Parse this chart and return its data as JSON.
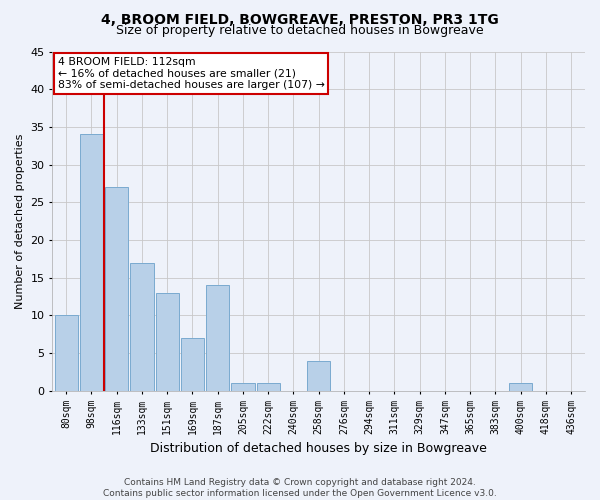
{
  "title": "4, BROOM FIELD, BOWGREAVE, PRESTON, PR3 1TG",
  "subtitle": "Size of property relative to detached houses in Bowgreave",
  "xlabel": "Distribution of detached houses by size in Bowgreave",
  "ylabel": "Number of detached properties",
  "bin_labels": [
    "80sqm",
    "98sqm",
    "116sqm",
    "133sqm",
    "151sqm",
    "169sqm",
    "187sqm",
    "205sqm",
    "222sqm",
    "240sqm",
    "258sqm",
    "276sqm",
    "294sqm",
    "311sqm",
    "329sqm",
    "347sqm",
    "365sqm",
    "383sqm",
    "400sqm",
    "418sqm",
    "436sqm"
  ],
  "bar_values": [
    10,
    34,
    27,
    17,
    13,
    7,
    14,
    1,
    1,
    0,
    4,
    0,
    0,
    0,
    0,
    0,
    0,
    0,
    1,
    0,
    0
  ],
  "bar_color": "#b8d0e8",
  "bar_edgecolor": "#7aaad0",
  "highlight_bin": 2,
  "highlight_color": "#cc0000",
  "annotation_line1": "4 BROOM FIELD: 112sqm",
  "annotation_line2": "← 16% of detached houses are smaller (21)",
  "annotation_line3": "83% of semi-detached houses are larger (107) →",
  "annotation_box_facecolor": "#ffffff",
  "annotation_box_edgecolor": "#cc0000",
  "ylim": [
    0,
    45
  ],
  "yticks": [
    0,
    5,
    10,
    15,
    20,
    25,
    30,
    35,
    40,
    45
  ],
  "footer_line1": "Contains HM Land Registry data © Crown copyright and database right 2024.",
  "footer_line2": "Contains public sector information licensed under the Open Government Licence v3.0.",
  "background_color": "#eef2fa",
  "grid_color": "#c8c8c8",
  "title_fontsize": 10,
  "subtitle_fontsize": 9,
  "ylabel_fontsize": 8,
  "xlabel_fontsize": 9,
  "tick_fontsize": 7,
  "footer_fontsize": 6.5
}
